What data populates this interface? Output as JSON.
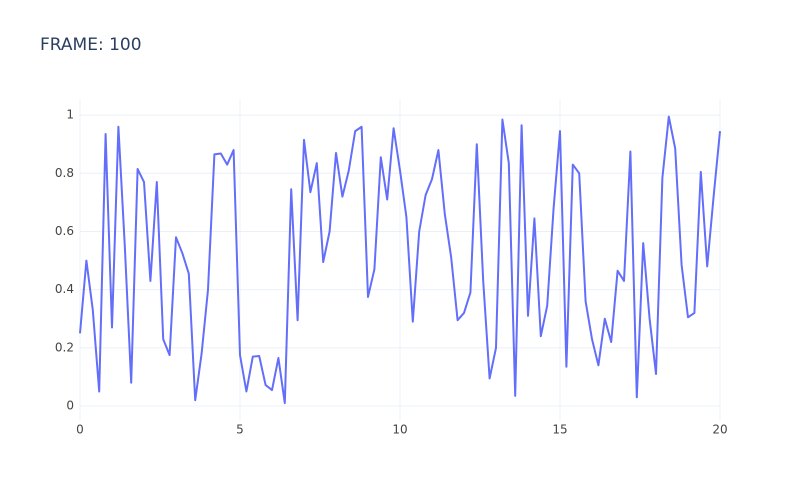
{
  "chart_data": {
    "type": "line",
    "title": "FRAME: 100",
    "color": "#636efa",
    "grid": true,
    "xlim": [
      0,
      20
    ],
    "xticks": [
      0,
      5,
      10,
      15,
      20
    ],
    "ylim": [
      -0.048,
      1.052
    ],
    "yticks": [
      0,
      0.2,
      0.4,
      0.6,
      0.8,
      1
    ],
    "x": [
      0,
      0.2,
      0.4,
      0.6,
      0.8,
      1,
      1.2,
      1.4,
      1.6,
      1.8,
      2,
      2.2,
      2.4,
      2.6,
      2.8,
      3,
      3.2,
      3.4,
      3.6,
      3.8,
      4,
      4.2,
      4.4,
      4.6,
      4.8,
      5,
      5.2,
      5.4,
      5.6,
      5.8,
      6,
      6.2,
      6.4,
      6.6,
      6.8,
      7,
      7.2,
      7.4,
      7.6,
      7.8,
      8,
      8.2,
      8.4,
      8.6,
      8.8,
      9,
      9.2,
      9.4,
      9.6,
      9.8,
      10,
      10.2,
      10.4,
      10.6,
      10.8,
      11,
      11.2,
      11.4,
      11.6,
      11.8,
      12,
      12.2,
      12.4,
      12.6,
      12.8,
      13,
      13.2,
      13.4,
      13.6,
      13.8,
      14,
      14.2,
      14.4,
      14.6,
      14.8,
      15,
      15.2,
      15.4,
      15.6,
      15.8,
      16,
      16.2,
      16.4,
      16.6,
      16.8,
      17,
      17.2,
      17.4,
      17.6,
      17.8,
      18,
      18.2,
      18.4,
      18.6,
      18.8,
      19,
      19.2,
      19.4,
      19.6,
      19.8,
      20
    ],
    "values": [
      0.25,
      0.5,
      0.33,
      0.05,
      0.935,
      0.27,
      0.96,
      0.55,
      0.08,
      0.815,
      0.77,
      0.43,
      0.77,
      0.23,
      0.175,
      0.58,
      0.525,
      0.455,
      0.02,
      0.18,
      0.4,
      0.865,
      0.868,
      0.83,
      0.88,
      0.175,
      0.05,
      0.17,
      0.172,
      0.072,
      0.055,
      0.165,
      0.01,
      0.745,
      0.295,
      0.915,
      0.735,
      0.835,
      0.495,
      0.6,
      0.87,
      0.72,
      0.81,
      0.945,
      0.96,
      0.375,
      0.47,
      0.855,
      0.71,
      0.955,
      0.81,
      0.65,
      0.29,
      0.6,
      0.725,
      0.78,
      0.88,
      0.66,
      0.51,
      0.295,
      0.32,
      0.39,
      0.9,
      0.43,
      0.095,
      0.2,
      0.985,
      0.835,
      0.035,
      0.965,
      0.31,
      0.645,
      0.24,
      0.345,
      0.68,
      0.945,
      0.135,
      0.83,
      0.8,
      0.36,
      0.23,
      0.14,
      0.3,
      0.22,
      0.465,
      0.43,
      0.875,
      0.03,
      0.56,
      0.3,
      0.11,
      0.785,
      0.995,
      0.885,
      0.485,
      0.305,
      0.32,
      0.805,
      0.48,
      0.72,
      0.945
    ]
  }
}
